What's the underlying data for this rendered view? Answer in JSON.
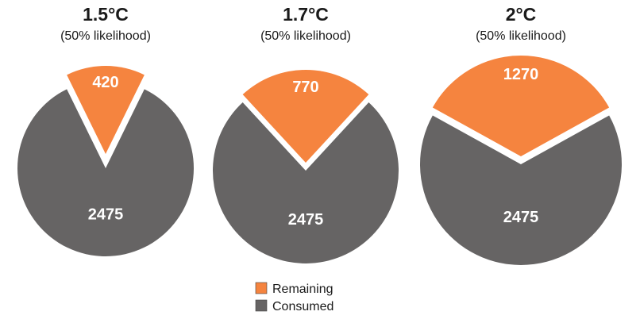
{
  "chart_data": {
    "type": "pie",
    "legend_placement": "bottom-center",
    "colors": {
      "Remaining": "#f5843f",
      "Consumed": "#666464"
    },
    "legend": [
      {
        "name": "Remaining",
        "color": "#f5843f"
      },
      {
        "name": "Consumed",
        "color": "#666464"
      }
    ],
    "pies": [
      {
        "title": "1.5°C",
        "subtitle": "(50% likelihood)",
        "slices": [
          {
            "name": "Remaining",
            "value": 420,
            "label": "420"
          },
          {
            "name": "Consumed",
            "value": 2475,
            "label": "2475"
          }
        ]
      },
      {
        "title": "1.7°C",
        "subtitle": "(50% likelihood)",
        "slices": [
          {
            "name": "Remaining",
            "value": 770,
            "label": "770"
          },
          {
            "name": "Consumed",
            "value": 2475,
            "label": "2475"
          }
        ]
      },
      {
        "title": "2°C",
        "subtitle": "(50% likelihood)",
        "slices": [
          {
            "name": "Remaining",
            "value": 1270,
            "label": "1270"
          },
          {
            "name": "Consumed",
            "value": 2475,
            "label": "2475"
          }
        ]
      }
    ]
  }
}
